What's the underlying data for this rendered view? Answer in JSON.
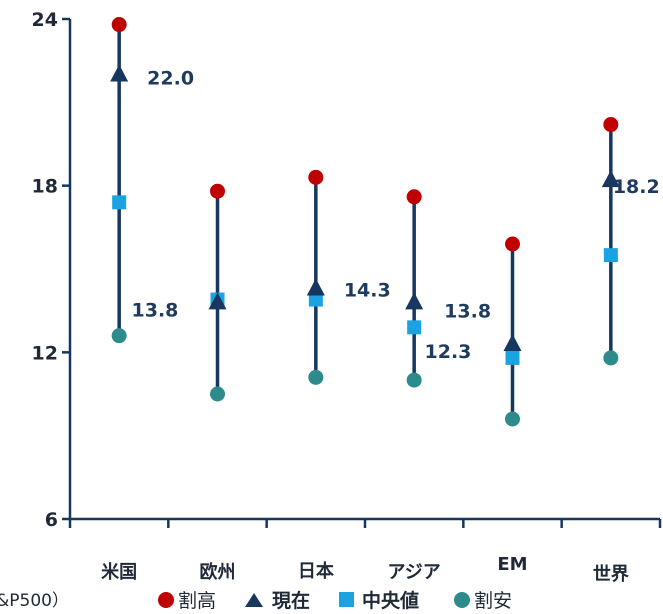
{
  "chart_data": {
    "type": "range-dot",
    "categories": [
      "米国",
      "欧州",
      "日本",
      "アジア",
      "EM",
      "世界"
    ],
    "ylim": [
      6,
      24
    ],
    "yticks": [
      6,
      12,
      18,
      24
    ],
    "series": [
      {
        "name": "割高",
        "marker": "circle",
        "color": "#c00000",
        "values": [
          23.8,
          17.8,
          18.3,
          17.6,
          15.9,
          20.2
        ]
      },
      {
        "name": "現在",
        "marker": "triangle",
        "color": "#17375e",
        "values": [
          22.0,
          13.8,
          14.3,
          13.8,
          12.3,
          18.2
        ]
      },
      {
        "name": "中央値",
        "marker": "square",
        "color": "#1aa3e0",
        "values": [
          17.4,
          13.9,
          13.9,
          12.9,
          11.8,
          15.5
        ]
      },
      {
        "name": "割安",
        "marker": "circle",
        "color": "#2e8b8b",
        "values": [
          12.6,
          10.5,
          11.1,
          11.0,
          9.6,
          11.8
        ]
      }
    ],
    "current_labels": [
      "22.0",
      "13.8",
      "14.3",
      "13.8",
      "12.3",
      "18.2"
    ],
    "legend_position": "bottom"
  },
  "legend": {
    "source_fragment": "&P500）"
  },
  "colors": {
    "axis": "#17375e",
    "whisker": "#17375e"
  }
}
